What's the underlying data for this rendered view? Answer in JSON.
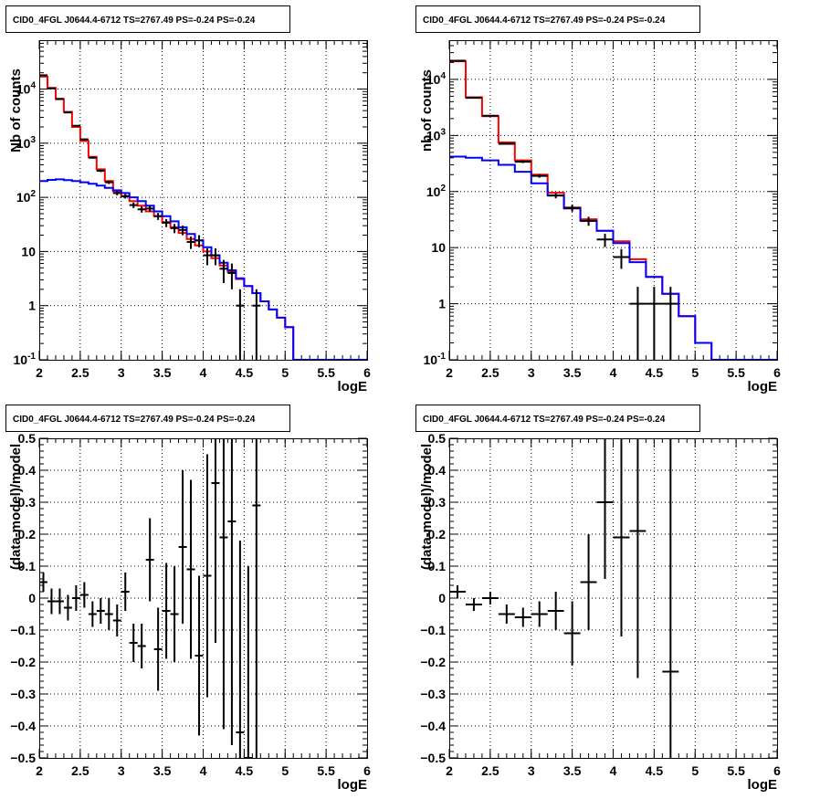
{
  "chart_data": [
    {
      "type": "line",
      "title": "CID0_4FGL J0644.4-6712 TS=2767.49 PS=-0.24 PS=-0.24",
      "xlabel": "logE",
      "ylabel": "Nb of counts",
      "xlim": [
        2,
        6
      ],
      "ylim": [
        0.1,
        80000
      ],
      "yscale": "log",
      "grid": true,
      "xticks": [
        2,
        2.5,
        3,
        3.5,
        4,
        4.5,
        5,
        5.5,
        6
      ],
      "xtick_labels": [
        "2",
        "2.5",
        "3",
        "3.5",
        "4",
        "4.5",
        "5",
        "5.5",
        "6"
      ],
      "yticks": [
        0.1,
        1,
        10,
        100,
        1000,
        10000
      ],
      "ytick_labels": [
        "10^-1",
        "1",
        "10",
        "10^2",
        "10^3",
        "10^4"
      ],
      "bin_edges": [
        2,
        2.1,
        2.2,
        2.3,
        2.4,
        2.5,
        2.6,
        2.7,
        2.8,
        2.9,
        3.0,
        3.1,
        3.2,
        3.3,
        3.4,
        3.5,
        3.6,
        3.7,
        3.8,
        3.9,
        4.0,
        4.1,
        4.2,
        4.3,
        4.4,
        4.5,
        4.6,
        4.7,
        4.8,
        4.9,
        5.0,
        5.1,
        5.2,
        5.3,
        5.4,
        5.5,
        5.6,
        5.7,
        5.8,
        5.9,
        6.0
      ],
      "series": [
        {
          "color": "#ff0000",
          "style": "step",
          "values": [
            17000,
            10500,
            6500,
            3800,
            2000,
            1100,
            560,
            330,
            200,
            130,
            105,
            85,
            70,
            55,
            45,
            35,
            28,
            22,
            17,
            13,
            10,
            7.5,
            5.5,
            4.2,
            3.1,
            2.3,
            1.7,
            1.2,
            0.85,
            0.6,
            0.4,
            0.1,
            0.1,
            0.1,
            0.1,
            0.1,
            0.1,
            0.1,
            0.1,
            0.1
          ]
        },
        {
          "color": "#0000ff",
          "style": "step",
          "values": [
            200,
            210,
            215,
            208,
            200,
            190,
            178,
            165,
            150,
            135,
            120,
            100,
            85,
            70,
            55,
            45,
            36,
            28,
            21,
            16,
            12,
            8.5,
            6.2,
            4.5,
            3.2,
            2.3,
            1.7,
            1.2,
            0.85,
            0.6,
            0.4,
            0.1,
            0.1,
            0.1,
            0.1,
            0.1,
            0.1,
            0.1,
            0.1,
            0.1
          ]
        },
        {
          "color": "#000000",
          "style": "points",
          "x": [
            2.05,
            2.15,
            2.25,
            2.35,
            2.45,
            2.55,
            2.65,
            2.75,
            2.85,
            2.95,
            3.05,
            3.15,
            3.25,
            3.35,
            3.45,
            3.55,
            3.65,
            3.75,
            3.85,
            3.95,
            4.05,
            4.15,
            4.25,
            4.35,
            4.45,
            4.55,
            4.65
          ],
          "values": [
            18000,
            10300,
            6600,
            3700,
            2100,
            1180,
            540,
            310,
            190,
            120,
            105,
            72,
            60,
            62,
            45,
            34,
            27,
            25,
            15,
            16,
            8.5,
            8.5,
            4.8,
            4,
            1,
            0,
            1
          ]
        }
      ]
    },
    {
      "type": "line",
      "title": "CID0_4FGL J0644.4-6712 TS=2767.49 PS=-0.24 PS=-0.24",
      "xlabel": "logE",
      "ylabel": "nb of counts",
      "xlim": [
        2,
        6
      ],
      "ylim": [
        0.1,
        50000
      ],
      "yscale": "log",
      "grid": true,
      "xticks": [
        2,
        2.5,
        3,
        3.5,
        4,
        4.5,
        5,
        5.5,
        6
      ],
      "xtick_labels": [
        "2",
        "2.5",
        "3",
        "3.5",
        "4",
        "4.5",
        "5",
        "5.5",
        "6"
      ],
      "yticks": [
        0.1,
        1,
        10,
        100,
        1000,
        10000
      ],
      "ytick_labels": [
        "10^-1",
        "1",
        "10",
        "10^2",
        "10^3",
        "10^4"
      ],
      "bin_edges": [
        2.0,
        2.2,
        2.4,
        2.6,
        2.8,
        3.0,
        3.2,
        3.4,
        3.6,
        3.8,
        4.0,
        4.2,
        4.4,
        4.6,
        4.8,
        5.0,
        5.2,
        5.4,
        5.6,
        5.8,
        6.0
      ],
      "series": [
        {
          "color": "#ff0000",
          "style": "step",
          "values": [
            21000,
            4800,
            2200,
            750,
            360,
            200,
            95,
            52,
            32,
            20,
            13,
            6.2,
            3,
            1.5,
            0.6,
            0.2,
            0.1,
            0.1,
            0.1,
            0.1
          ]
        },
        {
          "color": "#0000ff",
          "style": "step",
          "values": [
            420,
            400,
            360,
            300,
            225,
            140,
            85,
            50,
            30,
            20,
            12,
            5.5,
            3,
            1.5,
            0.6,
            0.2,
            0.1,
            0.1,
            0.1,
            0.1
          ]
        },
        {
          "color": "#000000",
          "style": "points",
          "x": [
            2.1,
            2.3,
            2.5,
            2.7,
            2.9,
            3.1,
            3.3,
            3.5,
            3.7,
            3.9,
            4.1,
            4.3,
            4.5,
            4.7
          ],
          "values": [
            21500,
            4700,
            2250,
            710,
            340,
            190,
            85,
            51,
            30,
            14,
            6.8,
            1,
            1,
            1
          ]
        }
      ]
    },
    {
      "type": "scatter",
      "title": "CID0_4FGL J0644.4-6712 TS=2767.49 PS=-0.24 PS=-0.24",
      "xlabel": "logE",
      "ylabel": "(data-model)/model",
      "xlim": [
        2,
        6
      ],
      "ylim": [
        -0.5,
        0.5
      ],
      "grid": true,
      "xticks": [
        2,
        2.5,
        3,
        3.5,
        4,
        4.5,
        5,
        5.5,
        6
      ],
      "xtick_labels": [
        "2",
        "2.5",
        "3",
        "3.5",
        "4",
        "4.5",
        "5",
        "5.5",
        "6"
      ],
      "yticks": [
        -0.5,
        -0.4,
        -0.3,
        -0.2,
        -0.1,
        0,
        0.1,
        0.2,
        0.3,
        0.4,
        0.5
      ],
      "ytick_labels": [
        "−0.5",
        "−0.4",
        "−0.3",
        "−0.2",
        "−0.1",
        "0",
        "0.1",
        "0.2",
        "0.3",
        "0.4",
        "0.5"
      ],
      "points": {
        "x": [
          2.05,
          2.15,
          2.25,
          2.35,
          2.45,
          2.55,
          2.65,
          2.75,
          2.85,
          2.95,
          3.05,
          3.15,
          3.25,
          3.35,
          3.45,
          3.55,
          3.65,
          3.75,
          3.85,
          3.95,
          4.05,
          4.15,
          4.25,
          4.35,
          4.45,
          4.55,
          4.65
        ],
        "y": [
          0.05,
          -0.01,
          -0.01,
          -0.03,
          0.0,
          0.01,
          -0.05,
          -0.04,
          -0.05,
          -0.07,
          0.02,
          -0.14,
          -0.15,
          0.12,
          -0.16,
          -0.04,
          -0.05,
          0.16,
          0.09,
          -0.18,
          0.07,
          0.36,
          0.19,
          0.24,
          -0.42,
          -0.5,
          0.29
        ],
        "yerr": [
          0.03,
          0.04,
          0.04,
          0.04,
          0.04,
          0.04,
          0.04,
          0.04,
          0.05,
          0.05,
          0.06,
          0.06,
          0.07,
          0.13,
          0.13,
          0.15,
          0.15,
          0.24,
          0.28,
          0.25,
          0.38,
          0.5,
          0.6,
          0.7,
          0.6,
          0.6,
          0.8
        ]
      }
    },
    {
      "type": "scatter",
      "title": "CID0_4FGL J0644.4-6712 TS=2767.49 PS=-0.24 PS=-0.24",
      "xlabel": "logE",
      "ylabel": "(data-model)/model",
      "xlim": [
        2,
        6
      ],
      "ylim": [
        -0.5,
        0.5
      ],
      "grid": true,
      "xticks": [
        2,
        2.5,
        3,
        3.5,
        4,
        4.5,
        5,
        5.5,
        6
      ],
      "xtick_labels": [
        "2",
        "2.5",
        "3",
        "3.5",
        "4",
        "4.5",
        "5",
        "5.5",
        "6"
      ],
      "yticks": [
        -0.5,
        -0.4,
        -0.3,
        -0.2,
        -0.1,
        0,
        0.1,
        0.2,
        0.3,
        0.4,
        0.5
      ],
      "ytick_labels": [
        "−0.5",
        "−0.4",
        "−0.3",
        "−0.2",
        "−0.1",
        "0",
        "0.1",
        "0.2",
        "0.3",
        "0.4",
        "0.5"
      ],
      "points": {
        "x": [
          2.1,
          2.3,
          2.5,
          2.7,
          2.9,
          3.1,
          3.3,
          3.5,
          3.7,
          3.9,
          4.1,
          4.3,
          4.7
        ],
        "y": [
          0.02,
          -0.02,
          0.0,
          -0.05,
          -0.06,
          -0.05,
          -0.04,
          -0.11,
          0.05,
          0.3,
          0.19,
          0.21,
          -0.23
        ],
        "yerr": [
          0.02,
          0.02,
          0.02,
          0.03,
          0.03,
          0.04,
          0.06,
          0.1,
          0.15,
          0.24,
          0.31,
          0.46,
          0.9
        ]
      }
    }
  ]
}
